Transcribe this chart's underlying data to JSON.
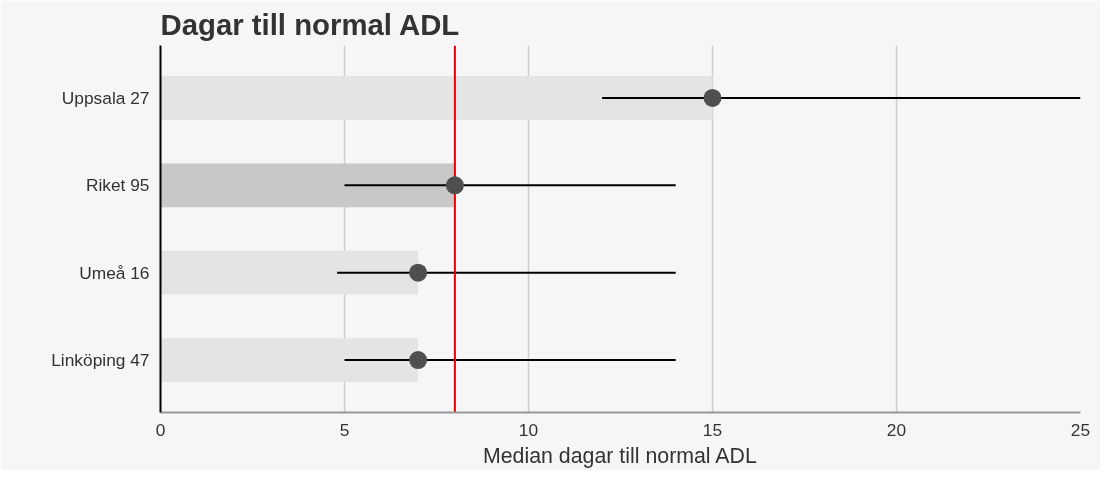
{
  "chart_data": {
    "type": "bar",
    "orientation": "horizontal",
    "title": "Dagar till normal ADL",
    "xlabel": "Median dagar till normal ADL",
    "categories": [
      "Uppsala 27",
      "Riket 95",
      "Umeå 16",
      "Linköping 47"
    ],
    "series": [
      {
        "values": [
          15,
          8,
          7,
          7
        ],
        "colors": [
          "#e4e4e4",
          "#c8c8c8",
          "#e4e4e4",
          "#e4e4e4"
        ],
        "errors": [
          [
            12,
            25
          ],
          [
            5,
            14
          ],
          [
            4.8,
            14
          ],
          [
            5,
            14
          ]
        ]
      },
      {
        "type": "scatter",
        "x": [
          "Uppsala 27",
          "Riket 95",
          "Umeå 16",
          "Linköping 47"
        ],
        "values": [
          15,
          8,
          7,
          7
        ],
        "color": "#4f4f4f"
      }
    ],
    "xlim": [
      0,
      25
    ],
    "xticks": [
      0,
      5,
      10,
      15,
      20,
      25
    ],
    "grid": "x",
    "marker": "circle",
    "ref_lines": [
      {
        "axis": "x",
        "value": 8,
        "color": "#ee0000"
      }
    ]
  }
}
